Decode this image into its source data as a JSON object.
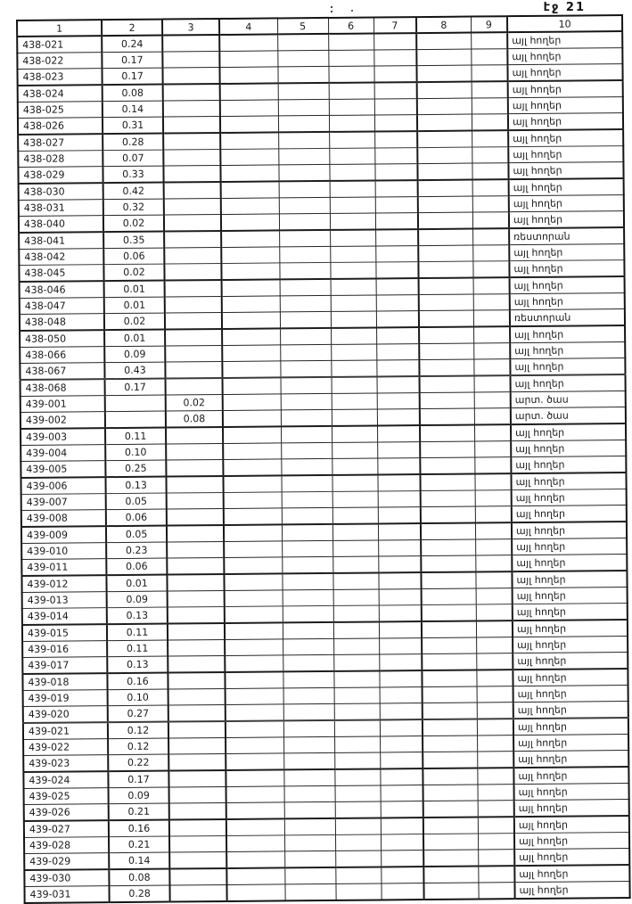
{
  "page": {
    "label": "էջ 21"
  },
  "colors": {
    "ink": "#1a1a1a",
    "paper": "#ffffff"
  },
  "table": {
    "headers": [
      "1",
      "2",
      "3",
      "4",
      "5",
      "6",
      "7",
      "8",
      "9",
      "10"
    ],
    "rows": [
      [
        "438-021",
        "0.24",
        "",
        "",
        "",
        "",
        "",
        "",
        "",
        "այլ հողեր"
      ],
      [
        "438-022",
        "0.17",
        "",
        "",
        "",
        "",
        "",
        "",
        "",
        "այլ հողեր"
      ],
      [
        "438-023",
        "0.17",
        "",
        "",
        "",
        "",
        "",
        "",
        "",
        "այլ հողեր"
      ],
      [
        "438-024",
        "0.08",
        "",
        "",
        "",
        "",
        "",
        "",
        "",
        "այլ հողեր"
      ],
      [
        "438-025",
        "0.14",
        "",
        "",
        "",
        "",
        "",
        "",
        "",
        "այլ հողեր"
      ],
      [
        "438-026",
        "0.31",
        "",
        "",
        "",
        "",
        "",
        "",
        "",
        "այլ հողեր"
      ],
      [
        "438-027",
        "0.28",
        "",
        "",
        "",
        "",
        "",
        "",
        "",
        "այլ հողեր"
      ],
      [
        "438-028",
        "0.07",
        "",
        "",
        "",
        "",
        "",
        "",
        "",
        "այլ հողեր"
      ],
      [
        "438-029",
        "0.33",
        "",
        "",
        "",
        "",
        "",
        "",
        "",
        "այլ հողեր"
      ],
      [
        "438-030",
        "0.42",
        "",
        "",
        "",
        "",
        "",
        "",
        "",
        "այլ հողեր"
      ],
      [
        "438-031",
        "0.32",
        "",
        "",
        "",
        "",
        "",
        "",
        "",
        "այլ հողեր"
      ],
      [
        "438-040",
        "0.02",
        "",
        "",
        "",
        "",
        "",
        "",
        "",
        "այլ հողեր"
      ],
      [
        "438-041",
        "0.35",
        "",
        "",
        "",
        "",
        "",
        "",
        "",
        "ռեստորան"
      ],
      [
        "438-042",
        "0.06",
        "",
        "",
        "",
        "",
        "",
        "",
        "",
        "այլ հողեր"
      ],
      [
        "438-045",
        "0.02",
        "",
        "",
        "",
        "",
        "",
        "",
        "",
        "այլ հողեր"
      ],
      [
        "438-046",
        "0.01",
        "",
        "",
        "",
        "",
        "",
        "",
        "",
        "այլ հողեր"
      ],
      [
        "438-047",
        "0.01",
        "",
        "",
        "",
        "",
        "",
        "",
        "",
        "այլ հողեր"
      ],
      [
        "438-048",
        "0.02",
        "",
        "",
        "",
        "",
        "",
        "",
        "",
        "ռեստորան"
      ],
      [
        "438-050",
        "0.01",
        "",
        "",
        "",
        "",
        "",
        "",
        "",
        "այլ հողեր"
      ],
      [
        "438-066",
        "0.09",
        "",
        "",
        "",
        "",
        "",
        "",
        "",
        "այլ հողեր"
      ],
      [
        "438-067",
        "0.43",
        "",
        "",
        "",
        "",
        "",
        "",
        "",
        "այլ հողեր"
      ],
      [
        "438-068",
        "0.17",
        "",
        "",
        "",
        "",
        "",
        "",
        "",
        "այլ հողեր"
      ],
      [
        "439-001",
        "",
        "0.02",
        "",
        "",
        "",
        "",
        "",
        "",
        "արտ. ծաս"
      ],
      [
        "439-002",
        "",
        "0.08",
        "",
        "",
        "",
        "",
        "",
        "",
        "արտ. ծաս"
      ],
      [
        "439-003",
        "0.11",
        "",
        "",
        "",
        "",
        "",
        "",
        "",
        "այլ հողեր"
      ],
      [
        "439-004",
        "0.10",
        "",
        "",
        "",
        "",
        "",
        "",
        "",
        "այլ հողեր"
      ],
      [
        "439-005",
        "0.25",
        "",
        "",
        "",
        "",
        "",
        "",
        "",
        "այլ հողեր"
      ],
      [
        "439-006",
        "0.13",
        "",
        "",
        "",
        "",
        "",
        "",
        "",
        "այլ հողեր"
      ],
      [
        "439-007",
        "0.05",
        "",
        "",
        "",
        "",
        "",
        "",
        "",
        "այլ հողեր"
      ],
      [
        "439-008",
        "0.06",
        "",
        "",
        "",
        "",
        "",
        "",
        "",
        "այլ հողեր"
      ],
      [
        "439-009",
        "0.05",
        "",
        "",
        "",
        "",
        "",
        "",
        "",
        "այլ հողեր"
      ],
      [
        "439-010",
        "0.23",
        "",
        "",
        "",
        "",
        "",
        "",
        "",
        "այլ հողեր"
      ],
      [
        "439-011",
        "0.06",
        "",
        "",
        "",
        "",
        "",
        "",
        "",
        "այլ հողեր"
      ],
      [
        "439-012",
        "0.01",
        "",
        "",
        "",
        "",
        "",
        "",
        "",
        "այլ հողեր"
      ],
      [
        "439-013",
        "0.09",
        "",
        "",
        "",
        "",
        "",
        "",
        "",
        "այլ հողեր"
      ],
      [
        "439-014",
        "0.13",
        "",
        "",
        "",
        "",
        "",
        "",
        "",
        "այլ հողեր"
      ],
      [
        "439-015",
        "0.11",
        "",
        "",
        "",
        "",
        "",
        "",
        "",
        "այլ հողեր"
      ],
      [
        "439-016",
        "0.11",
        "",
        "",
        "",
        "",
        "",
        "",
        "",
        "այլ հողեր"
      ],
      [
        "439-017",
        "0.13",
        "",
        "",
        "",
        "",
        "",
        "",
        "",
        "այլ հողեր"
      ],
      [
        "439-018",
        "0.16",
        "",
        "",
        "",
        "",
        "",
        "",
        "",
        "այլ հողեր"
      ],
      [
        "439-019",
        "0.10",
        "",
        "",
        "",
        "",
        "",
        "",
        "",
        "այլ հողեր"
      ],
      [
        "439-020",
        "0.27",
        "",
        "",
        "",
        "",
        "",
        "",
        "",
        "այլ հողեր"
      ],
      [
        "439-021",
        "0.12",
        "",
        "",
        "",
        "",
        "",
        "",
        "",
        "այլ հողեր"
      ],
      [
        "439-022",
        "0.12",
        "",
        "",
        "",
        "",
        "",
        "",
        "",
        "այլ հողեր"
      ],
      [
        "439-023",
        "0.22",
        "",
        "",
        "",
        "",
        "",
        "",
        "",
        "այլ հողեր"
      ],
      [
        "439-024",
        "0.17",
        "",
        "",
        "",
        "",
        "",
        "",
        "",
        "այլ հողեր"
      ],
      [
        "439-025",
        "0.09",
        "",
        "",
        "",
        "",
        "",
        "",
        "",
        "այլ հողեր"
      ],
      [
        "439-026",
        "0.21",
        "",
        "",
        "",
        "",
        "",
        "",
        "",
        "այլ հողեր"
      ],
      [
        "439-027",
        "0.16",
        "",
        "",
        "",
        "",
        "",
        "",
        "",
        "այլ հողեր"
      ],
      [
        "439-028",
        "0.21",
        "",
        "",
        "",
        "",
        "",
        "",
        "",
        "այլ հողեր"
      ],
      [
        "439-029",
        "0.14",
        "",
        "",
        "",
        "",
        "",
        "",
        "",
        "այլ հողեր"
      ],
      [
        "439-030",
        "0.08",
        "",
        "",
        "",
        "",
        "",
        "",
        "",
        "այլ հողեր"
      ],
      [
        "439-031",
        "0.28",
        "",
        "",
        "",
        "",
        "",
        "",
        "",
        "այլ հողեր"
      ]
    ]
  }
}
